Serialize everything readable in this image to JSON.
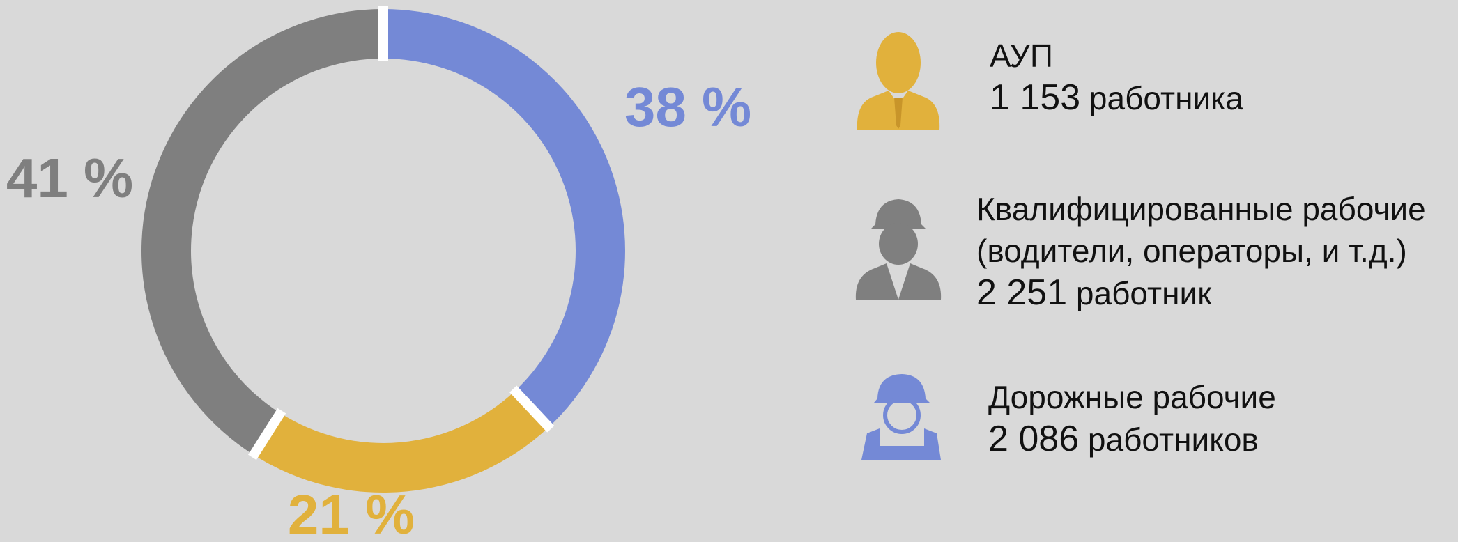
{
  "chart_data": {
    "type": "donut",
    "categories": [
      "АУП",
      "Квалифицированные рабочие\n(водители, операторы, и т.д.)",
      "Дорожные рабочие"
    ],
    "values": [
      38,
      21,
      41
    ],
    "value_labels": [
      "38 %",
      "21 %",
      "41 %"
    ],
    "colors": [
      "#7489d6",
      "#e1b13c",
      "#7f7f7f"
    ],
    "legend_colors": [
      "#e1b13c",
      "#7f7f7f",
      "#7489d6"
    ],
    "count_labels": [
      "1 153",
      "2 251",
      "2 086"
    ],
    "count_units": [
      "работника",
      "работник",
      "работников"
    ]
  }
}
